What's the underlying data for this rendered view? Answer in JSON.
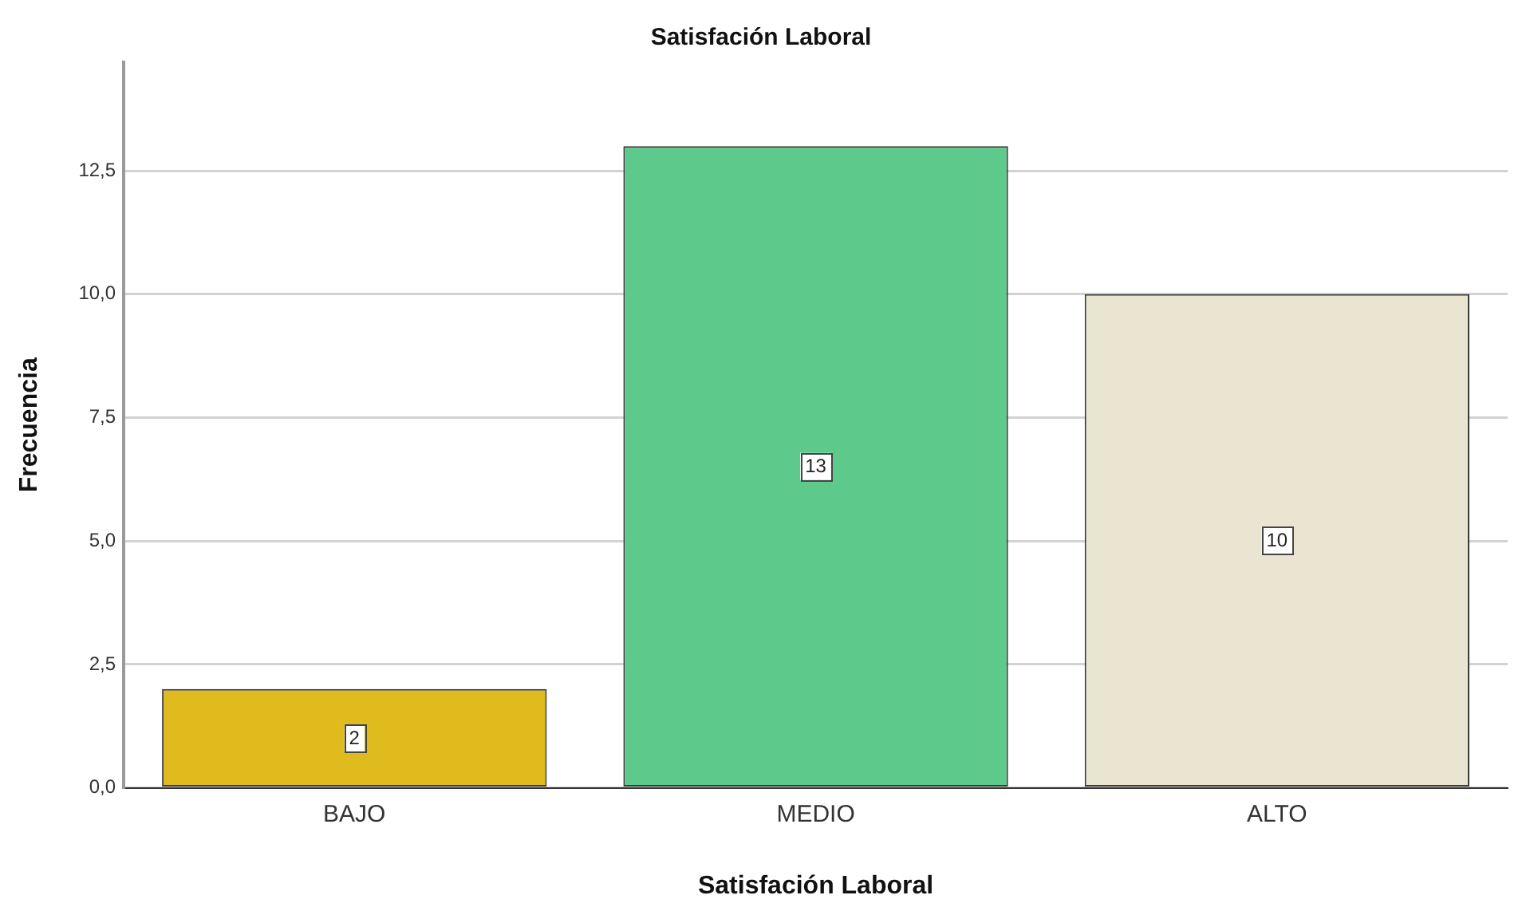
{
  "chart_data": {
    "type": "bar",
    "title": "Satisfación Laboral",
    "xlabel": "Satisfación Laboral",
    "ylabel": "Frecuencia",
    "categories": [
      "BAJO",
      "MEDIO",
      "ALTO"
    ],
    "values": [
      2,
      13,
      10
    ],
    "colors": [
      "#e0bb1e",
      "#5dca8b",
      "#eae5d0"
    ],
    "ylim": [
      0,
      14.7
    ],
    "yticks": [
      {
        "value": 0,
        "label": "0,0"
      },
      {
        "value": 2.5,
        "label": "2,5"
      },
      {
        "value": 5,
        "label": "5,0"
      },
      {
        "value": 7.5,
        "label": "7,5"
      },
      {
        "value": 10,
        "label": "10,0"
      },
      {
        "value": 12.5,
        "label": "12,5"
      }
    ],
    "grid": "y",
    "data_labels": true
  }
}
